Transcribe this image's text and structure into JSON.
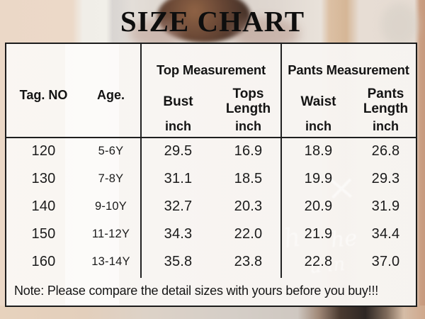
{
  "title": "SIZE CHART",
  "table": {
    "corner": {
      "tag": "Tag. NO",
      "age": "Age."
    },
    "groups": [
      {
        "label": "Top Measurement"
      },
      {
        "label": "Pants Measurement"
      }
    ],
    "columns": [
      {
        "label": "Bust",
        "unit": "inch"
      },
      {
        "label": "Tops Length",
        "unit": "inch"
      },
      {
        "label": "Waist",
        "unit": "inch"
      },
      {
        "label": "Pants Length",
        "unit": "inch"
      }
    ],
    "rows": [
      [
        "120",
        "5-6Y",
        "29.5",
        "16.9",
        "18.9",
        "26.8"
      ],
      [
        "130",
        "7-8Y",
        "31.1",
        "18.5",
        "19.9",
        "29.3"
      ],
      [
        "140",
        "9-10Y",
        "32.7",
        "20.3",
        "20.9",
        "31.9"
      ],
      [
        "150",
        "11-12Y",
        "34.3",
        "22.0",
        "21.9",
        "34.4"
      ],
      [
        "160",
        "13-14Y",
        "35.8",
        "23.8",
        "22.8",
        "37.0"
      ]
    ]
  },
  "note": "Note: Please compare the detail sizes with yours before you buy!!!",
  "background": {
    "script_fragments": {
      "f1": "h",
      "f2": "he",
      "f3": "u in"
    }
  },
  "colors": {
    "border": "#1c1c1c",
    "text": "#1a1a1a",
    "table_bg": "#faf7f4",
    "accent_tan": "#d5b696",
    "bg_beige": "#ecd9c8"
  },
  "chart_data": {
    "type": "table",
    "title": "SIZE CHART",
    "column_groups": [
      "",
      "",
      "Top Measurement",
      "Top Measurement",
      "Pants Measurement",
      "Pants Measurement"
    ],
    "columns": [
      "Tag. NO",
      "Age.",
      "Bust (inch)",
      "Tops Length (inch)",
      "Waist (inch)",
      "Pants Length (inch)"
    ],
    "rows": [
      [
        "120",
        "5-6Y",
        29.5,
        16.9,
        18.9,
        26.8
      ],
      [
        "130",
        "7-8Y",
        31.1,
        18.5,
        19.9,
        29.3
      ],
      [
        "140",
        "9-10Y",
        32.7,
        20.3,
        20.9,
        31.9
      ],
      [
        "150",
        "11-12Y",
        34.3,
        22.0,
        21.9,
        34.4
      ],
      [
        "160",
        "13-14Y",
        35.8,
        23.8,
        22.8,
        37.0
      ]
    ],
    "note": "Note: Please compare the detail sizes with yours before you buy!!!"
  }
}
